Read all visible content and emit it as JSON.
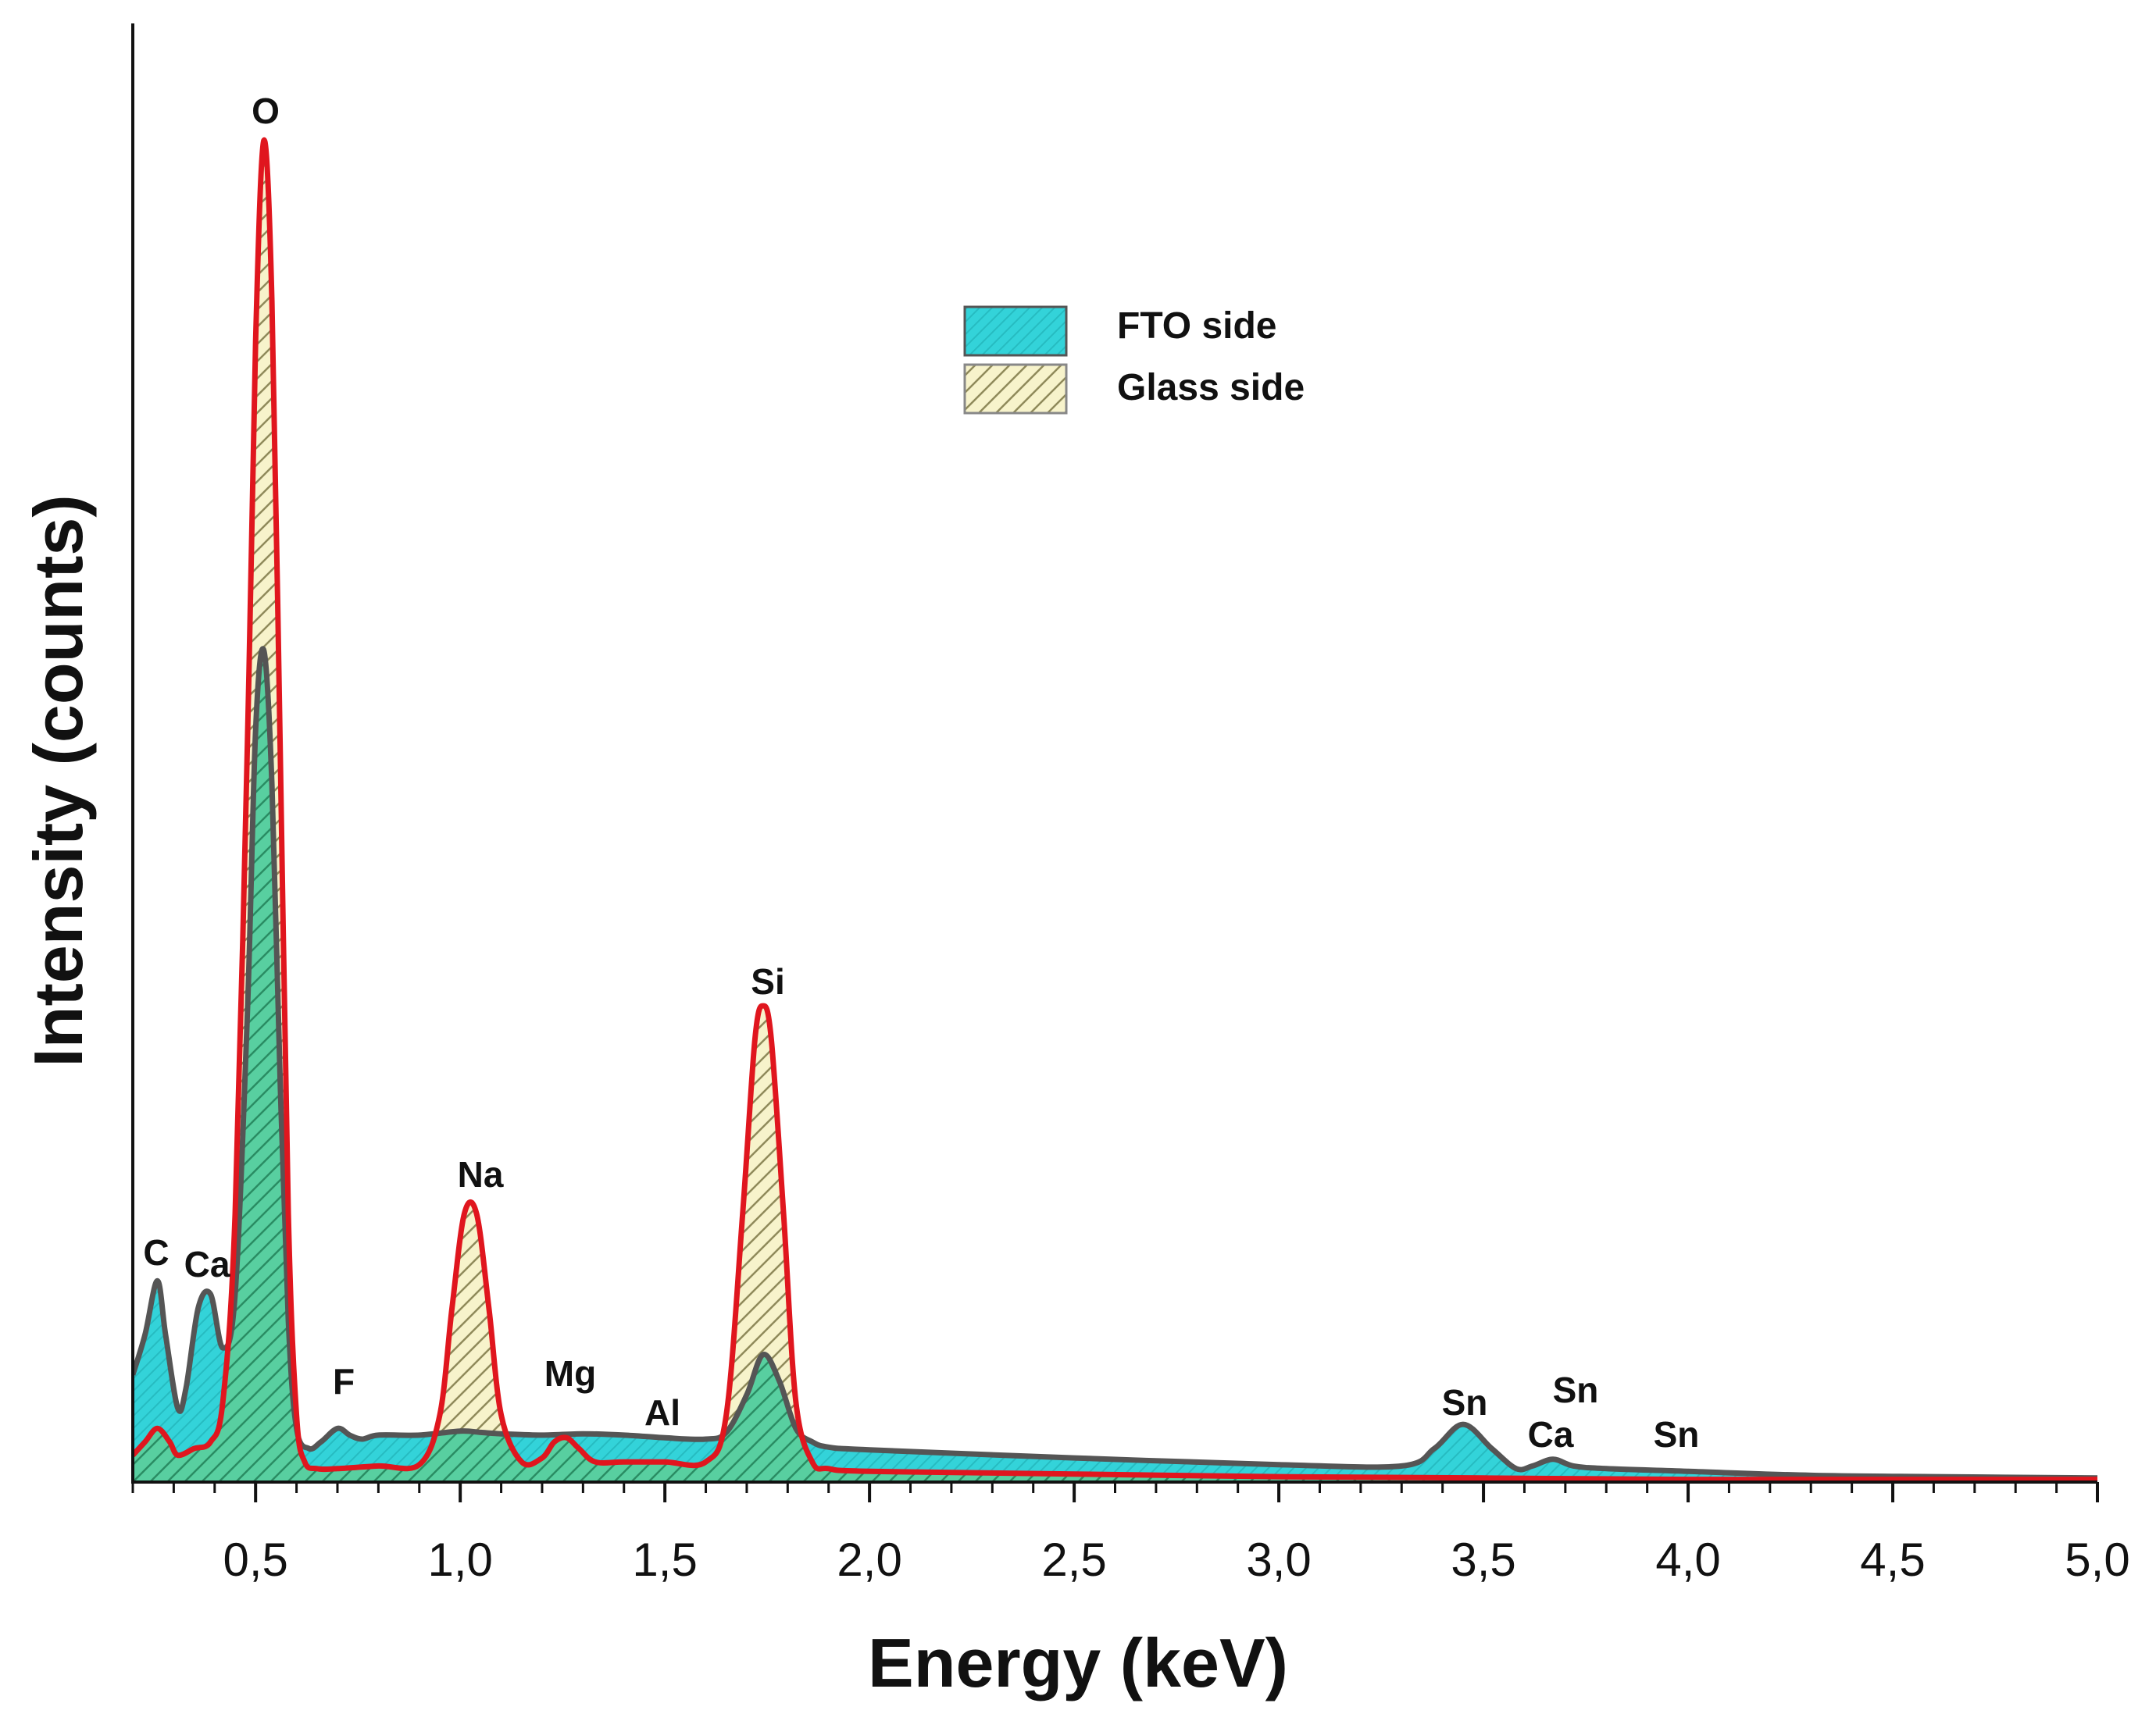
{
  "chart_data": {
    "type": "area",
    "title": "",
    "xlabel": "Energy (keV)",
    "ylabel": "Intensity (counts)",
    "xlim": [
      0.2,
      5.0
    ],
    "ylim": [
      0,
      100
    ],
    "x_ticks": [
      0.5,
      1.0,
      1.5,
      2.0,
      2.5,
      3.0,
      3.5,
      4.0,
      4.5,
      5.0
    ],
    "x_tick_labels": [
      "0,5",
      "1,0",
      "1,5",
      "2,0",
      "2,5",
      "3,0",
      "3,5",
      "4,0",
      "4,5",
      "5,0"
    ],
    "grid": false,
    "legend_position": "top-center",
    "series": [
      {
        "name": "FTO side",
        "fill": "#33d3d9",
        "line": "#555555",
        "x": [
          0.2,
          0.23,
          0.26,
          0.28,
          0.31,
          0.33,
          0.36,
          0.39,
          0.42,
          0.45,
          0.48,
          0.5,
          0.52,
          0.54,
          0.56,
          0.58,
          0.6,
          0.63,
          0.66,
          0.7,
          0.73,
          0.76,
          0.8,
          0.9,
          1.0,
          1.05,
          1.1,
          1.2,
          1.3,
          1.4,
          1.5,
          1.6,
          1.65,
          1.7,
          1.74,
          1.78,
          1.82,
          1.86,
          1.9,
          2.0,
          2.5,
          3.0,
          3.3,
          3.38,
          3.45,
          3.52,
          3.58,
          3.62,
          3.67,
          3.72,
          3.8,
          4.0,
          4.3,
          4.6,
          5.0
        ],
        "values": [
          8.0,
          11.0,
          15.0,
          11.0,
          5.5,
          7.0,
          13.0,
          14.0,
          10.0,
          14.0,
          35.0,
          56.0,
          62.0,
          52.0,
          30.0,
          12.0,
          4.0,
          2.5,
          3.0,
          4.0,
          3.5,
          3.2,
          3.5,
          3.5,
          3.8,
          3.7,
          3.6,
          3.5,
          3.6,
          3.5,
          3.3,
          3.2,
          3.7,
          6.5,
          9.5,
          7.5,
          4.0,
          3.0,
          2.6,
          2.4,
          1.8,
          1.3,
          1.2,
          2.5,
          4.3,
          2.5,
          1.0,
          1.2,
          1.7,
          1.2,
          1.0,
          0.8,
          0.5,
          0.4,
          0.3
        ]
      },
      {
        "name": "Glass side",
        "fill": "#f7f3cb",
        "line": "#e0161e",
        "x": [
          0.2,
          0.23,
          0.26,
          0.29,
          0.31,
          0.35,
          0.39,
          0.42,
          0.45,
          0.48,
          0.5,
          0.52,
          0.54,
          0.56,
          0.58,
          0.6,
          0.62,
          0.65,
          0.7,
          0.8,
          0.9,
          0.95,
          0.98,
          1.01,
          1.04,
          1.07,
          1.1,
          1.15,
          1.2,
          1.23,
          1.26,
          1.29,
          1.33,
          1.4,
          1.5,
          1.6,
          1.65,
          1.69,
          1.72,
          1.74,
          1.76,
          1.79,
          1.82,
          1.86,
          1.9,
          2.0,
          2.5,
          3.0,
          3.5,
          4.0,
          4.5,
          5.0
        ],
        "values": [
          2.0,
          3.0,
          4.0,
          3.0,
          2.0,
          2.5,
          3.0,
          6.0,
          20.0,
          55.0,
          85.0,
          100.0,
          88.0,
          55.0,
          20.0,
          5.0,
          1.5,
          1.0,
          1.0,
          1.2,
          1.3,
          5.0,
          13.0,
          20.0,
          20.0,
          13.0,
          5.0,
          1.5,
          1.8,
          3.0,
          3.3,
          2.5,
          1.5,
          1.5,
          1.5,
          1.5,
          5.0,
          20.0,
          33.0,
          35.5,
          33.0,
          20.0,
          6.0,
          1.5,
          1.0,
          0.8,
          0.6,
          0.4,
          0.3,
          0.2,
          0.2,
          0.2
        ]
      }
    ],
    "annotations": [
      {
        "text": "O",
        "x": 0.52
      },
      {
        "text": "C",
        "x": 0.26
      },
      {
        "text": "Ca",
        "x": 0.39
      },
      {
        "text": "F",
        "x": 0.71
      },
      {
        "text": "Na",
        "x": 1.04
      },
      {
        "text": "Mg",
        "x": 1.28
      },
      {
        "text": "Al",
        "x": 1.49
      },
      {
        "text": "Si",
        "x": 1.74
      },
      {
        "text": "Sn",
        "x": 3.44
      },
      {
        "text": "Ca",
        "x": 3.69
      },
      {
        "text": "Sn",
        "x": 3.71
      },
      {
        "text": "Sn",
        "x": 3.97
      }
    ]
  }
}
